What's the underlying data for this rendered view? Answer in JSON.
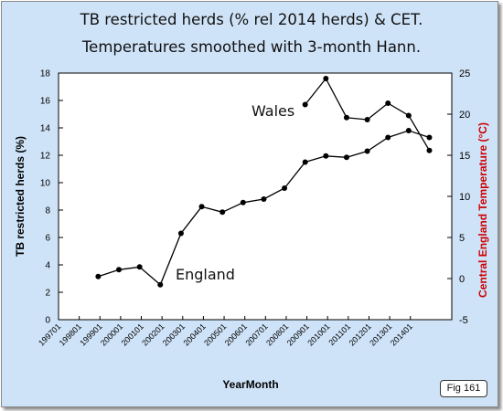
{
  "title_line1": "TB restricted herds (% rel 2014 herds) & CET.",
  "title_line2": "Temperatures smoothed with 3-month Hann.",
  "fig_label": "Fig 161",
  "chart_data": {
    "type": "line",
    "xlabel": "YearMonth",
    "ylabel": "TB restricted herds (%)",
    "y2label": "Central England Temperature (°C)",
    "xlim": [
      199701,
      201601
    ],
    "ylim": [
      0,
      18
    ],
    "y2lim": [
      -5,
      25
    ],
    "x_ticks": [
      199701,
      199801,
      199901,
      200001,
      200101,
      200201,
      200301,
      200401,
      200501,
      200601,
      200701,
      200801,
      200901,
      201001,
      201101,
      201201,
      201301,
      201401
    ],
    "y_ticks": [
      0,
      2,
      4,
      6,
      8,
      10,
      12,
      14,
      16,
      18
    ],
    "y2_ticks": [
      -5,
      0,
      5,
      10,
      15,
      20,
      25
    ],
    "grid": false,
    "colors": {
      "axis_left": "#000000",
      "axis_right": "#cc0000",
      "series": "#000000"
    },
    "series": [
      {
        "name": "England",
        "x": [
          199812,
          199912,
          200012,
          200112,
          200212,
          200312,
          200412,
          200512,
          200612,
          200712,
          200812,
          200912,
          201012,
          201112,
          201212,
          201312,
          201412
        ],
        "values": [
          3.15,
          3.65,
          3.85,
          2.55,
          6.3,
          8.25,
          7.85,
          8.55,
          8.8,
          9.6,
          11.5,
          11.95,
          11.85,
          12.3,
          13.3,
          13.8,
          13.3
        ]
      },
      {
        "name": "Wales",
        "x": [
          200812,
          200912,
          201012,
          201112,
          201212,
          201312,
          201412
        ],
        "values": [
          15.7,
          17.6,
          14.75,
          14.6,
          15.8,
          14.9,
          12.35
        ]
      }
    ]
  }
}
